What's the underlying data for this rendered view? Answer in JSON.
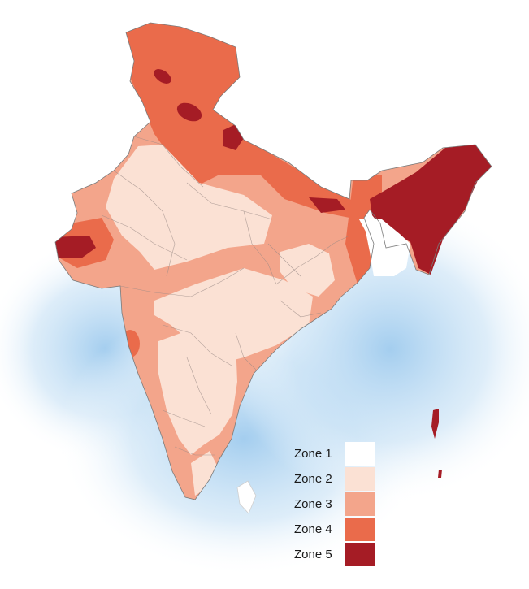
{
  "legend": {
    "items": [
      {
        "label": "Zone 1",
        "color": "#ffffff"
      },
      {
        "label": "Zone 2",
        "color": "#fbe1d4"
      },
      {
        "label": "Zone 3",
        "color": "#f3a58b"
      },
      {
        "label": "Zone 4",
        "color": "#ea6b4b"
      },
      {
        "label": "Zone 5",
        "color": "#a51c25"
      }
    ]
  },
  "colors": {
    "sea": "#b9d9f2",
    "outline": "#7a7a7a",
    "boundary": "#9a8a86"
  }
}
